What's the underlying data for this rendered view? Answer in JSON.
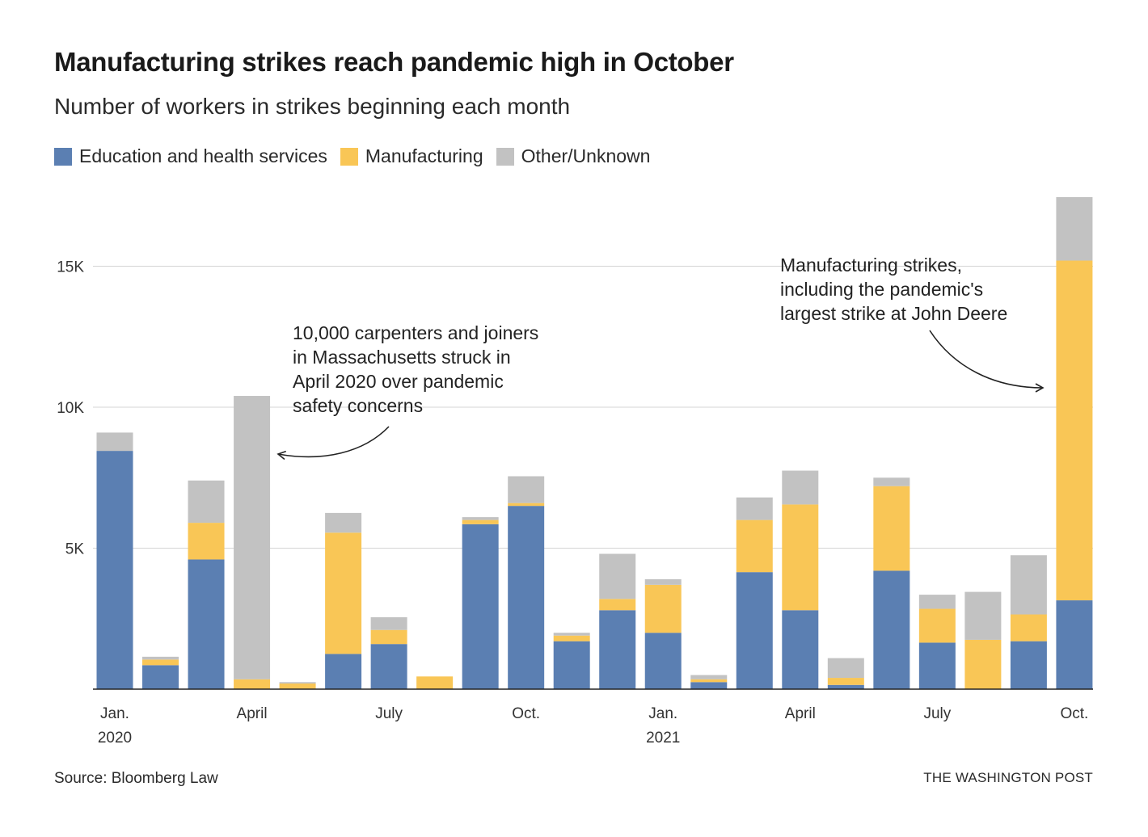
{
  "title": "Manufacturing strikes reach pandemic high in October",
  "subtitle": "Number of workers in strikes beginning each month",
  "legend": [
    {
      "label": "Education and health services",
      "color": "#5b7fb2"
    },
    {
      "label": "Manufacturing",
      "color": "#f9c656"
    },
    {
      "label": "Other/Unknown",
      "color": "#c2c2c2"
    }
  ],
  "chart_data": {
    "type": "bar",
    "stacked": true,
    "title": "Manufacturing strikes reach pandemic high in October",
    "subtitle": "Number of workers in strikes beginning each month",
    "ylim": [
      0,
      17500
    ],
    "yticks": [
      5000,
      10000,
      15000
    ],
    "ytick_labels": [
      "5K",
      "10K",
      "15K"
    ],
    "grid": true,
    "legend_position": "top-left",
    "categories": [
      "Jan. 2020",
      "Feb. 2020",
      "Mar. 2020",
      "Apr. 2020",
      "May 2020",
      "Jun. 2020",
      "Jul. 2020",
      "Aug. 2020",
      "Sep. 2020",
      "Oct. 2020",
      "Nov. 2020",
      "Dec. 2020",
      "Jan. 2021",
      "Feb. 2021",
      "Mar. 2021",
      "Apr. 2021",
      "May 2021",
      "Jun. 2021",
      "Jul. 2021",
      "Aug. 2021",
      "Sep. 2021",
      "Oct. 2021"
    ],
    "xtick_labels": [
      {
        "index": 0,
        "label": "Jan.",
        "year": "2020"
      },
      {
        "index": 3,
        "label": "April",
        "year": ""
      },
      {
        "index": 6,
        "label": "July",
        "year": ""
      },
      {
        "index": 9,
        "label": "Oct.",
        "year": ""
      },
      {
        "index": 12,
        "label": "Jan.",
        "year": "2021"
      },
      {
        "index": 15,
        "label": "April",
        "year": ""
      },
      {
        "index": 18,
        "label": "July",
        "year": ""
      },
      {
        "index": 21,
        "label": "Oct.",
        "year": ""
      }
    ],
    "series": [
      {
        "name": "Education and health services",
        "color": "#5b7fb2",
        "values": [
          8450,
          850,
          4600,
          0,
          0,
          1250,
          1600,
          0,
          5850,
          6500,
          1700,
          2800,
          2000,
          250,
          4150,
          2800,
          150,
          4200,
          1650,
          0,
          1700,
          3150
        ]
      },
      {
        "name": "Manufacturing",
        "color": "#f9c656",
        "values": [
          0,
          200,
          1300,
          350,
          200,
          4300,
          500,
          450,
          150,
          100,
          200,
          400,
          1700,
          100,
          1850,
          3750,
          250,
          3000,
          1200,
          1750,
          950,
          12050
        ]
      },
      {
        "name": "Other/Unknown",
        "color": "#c2c2c2",
        "values": [
          650,
          100,
          1500,
          10050,
          50,
          700,
          450,
          0,
          100,
          950,
          100,
          1600,
          200,
          150,
          800,
          1200,
          700,
          300,
          500,
          1700,
          2100,
          2250
        ]
      }
    ],
    "annotations": [
      {
        "lines": [
          "10,000 carpenters and joiners",
          "in Massachusetts struck in",
          "April 2020 over pandemic",
          "safety concerns"
        ],
        "target_index": 3
      },
      {
        "lines": [
          "Manufacturing strikes,",
          "including the pandemic's",
          "largest strike at John Deere"
        ],
        "target_index": 21
      }
    ]
  },
  "footer": {
    "source": "Source: Bloomberg Law",
    "credit": "THE WASHINGTON POST"
  }
}
